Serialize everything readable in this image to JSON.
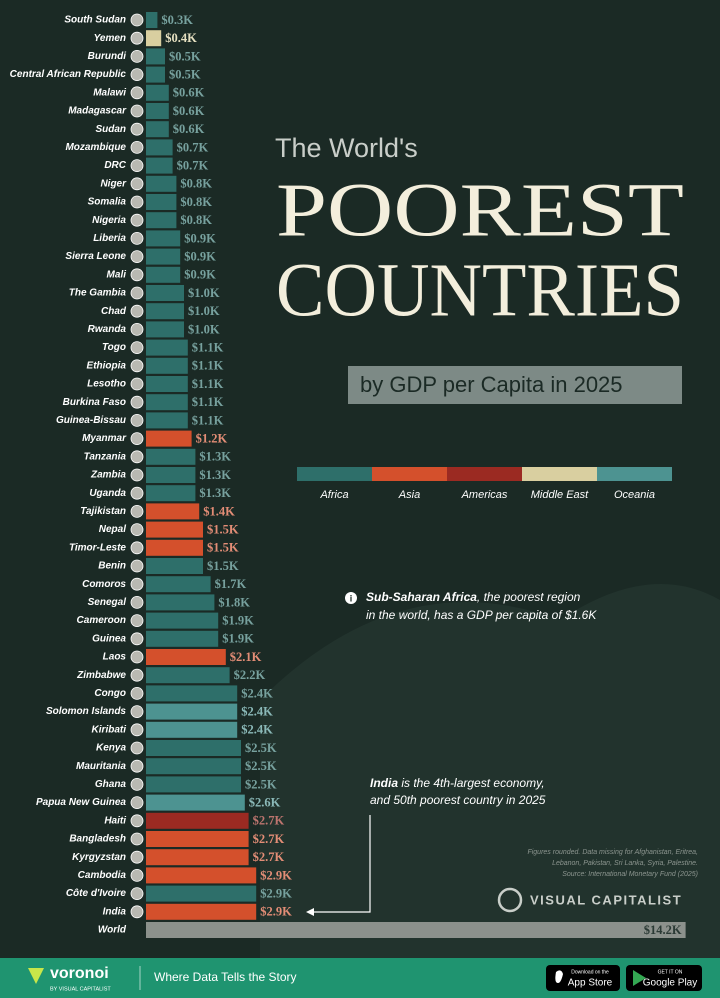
{
  "chart_data": {
    "type": "bar",
    "orientation": "horizontal",
    "title_lead": "The World's",
    "title_line1": "POOREST",
    "title_line2": "COUNTRIES",
    "subtitle": "by GDP per Capita in 2025",
    "categories": [
      "South Sudan",
      "Yemen",
      "Burundi",
      "Central African Republic",
      "Malawi",
      "Madagascar",
      "Sudan",
      "Mozambique",
      "DRC",
      "Niger",
      "Somalia",
      "Nigeria",
      "Liberia",
      "Sierra Leone",
      "Mali",
      "The Gambia",
      "Chad",
      "Rwanda",
      "Togo",
      "Ethiopia",
      "Lesotho",
      "Burkina Faso",
      "Guinea-Bissau",
      "Myanmar",
      "Tanzania",
      "Zambia",
      "Uganda",
      "Tajikistan",
      "Nepal",
      "Timor-Leste",
      "Benin",
      "Comoros",
      "Senegal",
      "Cameroon",
      "Guinea",
      "Laos",
      "Zimbabwe",
      "Congo",
      "Solomon Islands",
      "Kiribati",
      "Kenya",
      "Mauritania",
      "Ghana",
      "Papua New Guinea",
      "Haiti",
      "Bangladesh",
      "Kyrgyzstan",
      "Cambodia",
      "Côte d'Ivoire",
      "India",
      "World"
    ],
    "values": [
      0.3,
      0.4,
      0.5,
      0.5,
      0.6,
      0.6,
      0.6,
      0.7,
      0.7,
      0.8,
      0.8,
      0.8,
      0.9,
      0.9,
      0.9,
      1.0,
      1.0,
      1.0,
      1.1,
      1.1,
      1.1,
      1.1,
      1.1,
      1.2,
      1.3,
      1.3,
      1.3,
      1.4,
      1.5,
      1.5,
      1.5,
      1.7,
      1.8,
      1.9,
      1.9,
      2.1,
      2.2,
      2.4,
      2.4,
      2.4,
      2.5,
      2.5,
      2.5,
      2.6,
      2.7,
      2.7,
      2.7,
      2.9,
      2.9,
      2.9,
      14.2
    ],
    "value_labels": [
      "$0.3K",
      "$0.4K",
      "$0.5K",
      "$0.5K",
      "$0.6K",
      "$0.6K",
      "$0.6K",
      "$0.7K",
      "$0.7K",
      "$0.8K",
      "$0.8K",
      "$0.8K",
      "$0.9K",
      "$0.9K",
      "$0.9K",
      "$1.0K",
      "$1.0K",
      "$1.0K",
      "$1.1K",
      "$1.1K",
      "$1.1K",
      "$1.1K",
      "$1.1K",
      "$1.2K",
      "$1.3K",
      "$1.3K",
      "$1.3K",
      "$1.4K",
      "$1.5K",
      "$1.5K",
      "$1.5K",
      "$1.7K",
      "$1.8K",
      "$1.9K",
      "$1.9K",
      "$2.1K",
      "$2.2K",
      "$2.4K",
      "$2.4K",
      "$2.4K",
      "$2.5K",
      "$2.5K",
      "$2.5K",
      "$2.6K",
      "$2.7K",
      "$2.7K",
      "$2.7K",
      "$2.9K",
      "$2.9K",
      "$2.9K",
      "$14.2K"
    ],
    "colors": [
      "#2e6f6a",
      "#d9cfa0",
      "#2e6f6a",
      "#2e6f6a",
      "#2e6f6a",
      "#2e6f6a",
      "#2e6f6a",
      "#2e6f6a",
      "#2e6f6a",
      "#2e6f6a",
      "#2e6f6a",
      "#2e6f6a",
      "#2e6f6a",
      "#2e6f6a",
      "#2e6f6a",
      "#2e6f6a",
      "#2e6f6a",
      "#2e6f6a",
      "#2e6f6a",
      "#2e6f6a",
      "#2e6f6a",
      "#2e6f6a",
      "#2e6f6a",
      "#d4502c",
      "#2e6f6a",
      "#2e6f6a",
      "#2e6f6a",
      "#d4502c",
      "#d4502c",
      "#d4502c",
      "#2e6f6a",
      "#2e6f6a",
      "#2e6f6a",
      "#2e6f6a",
      "#2e6f6a",
      "#d4502c",
      "#2e6f6a",
      "#2e6f6a",
      "#4d9391",
      "#4d9391",
      "#2e6f6a",
      "#2e6f6a",
      "#2e6f6a",
      "#4d9391",
      "#9b2a22",
      "#d4502c",
      "#d4502c",
      "#d4502c",
      "#2e6f6a",
      "#d4502c",
      "#8c918c"
    ],
    "legend": [
      {
        "name": "Africa",
        "color": "#2e6f6a"
      },
      {
        "name": "Asia",
        "color": "#d4502c"
      },
      {
        "name": "Americas",
        "color": "#9b2a22"
      },
      {
        "name": "Middle East",
        "color": "#d9cfa0"
      },
      {
        "name": "Oceania",
        "color": "#4d9391"
      }
    ],
    "annotations": [
      {
        "bold": "Sub-Saharan Africa",
        "text_line1": ", the poorest region",
        "text_line2": "in the world, has a GDP per capita of $1.6K"
      },
      {
        "bold": "India",
        "text_line1": " is the 4th-largest economy,",
        "text_line2": "and 50th poorest country in 2025"
      }
    ],
    "source_lines": [
      "Figures rounded. Data missing for Afghanistan, Eritrea,",
      "Lebanon, Pakistan, Sri Lanka, Syria, Palestine.",
      "Source: International Monetary Fund (2025)"
    ],
    "brand": "VISUAL CAPITALIST"
  },
  "footer": {
    "logo": "voronoi",
    "logo_sub": "BY VISUAL CAPITALIST",
    "tagline": "Where Data Tells the Story",
    "app_store_small": "Download on the",
    "app_store": "App Store",
    "google_small": "GET IT ON",
    "google": "Google Play"
  }
}
